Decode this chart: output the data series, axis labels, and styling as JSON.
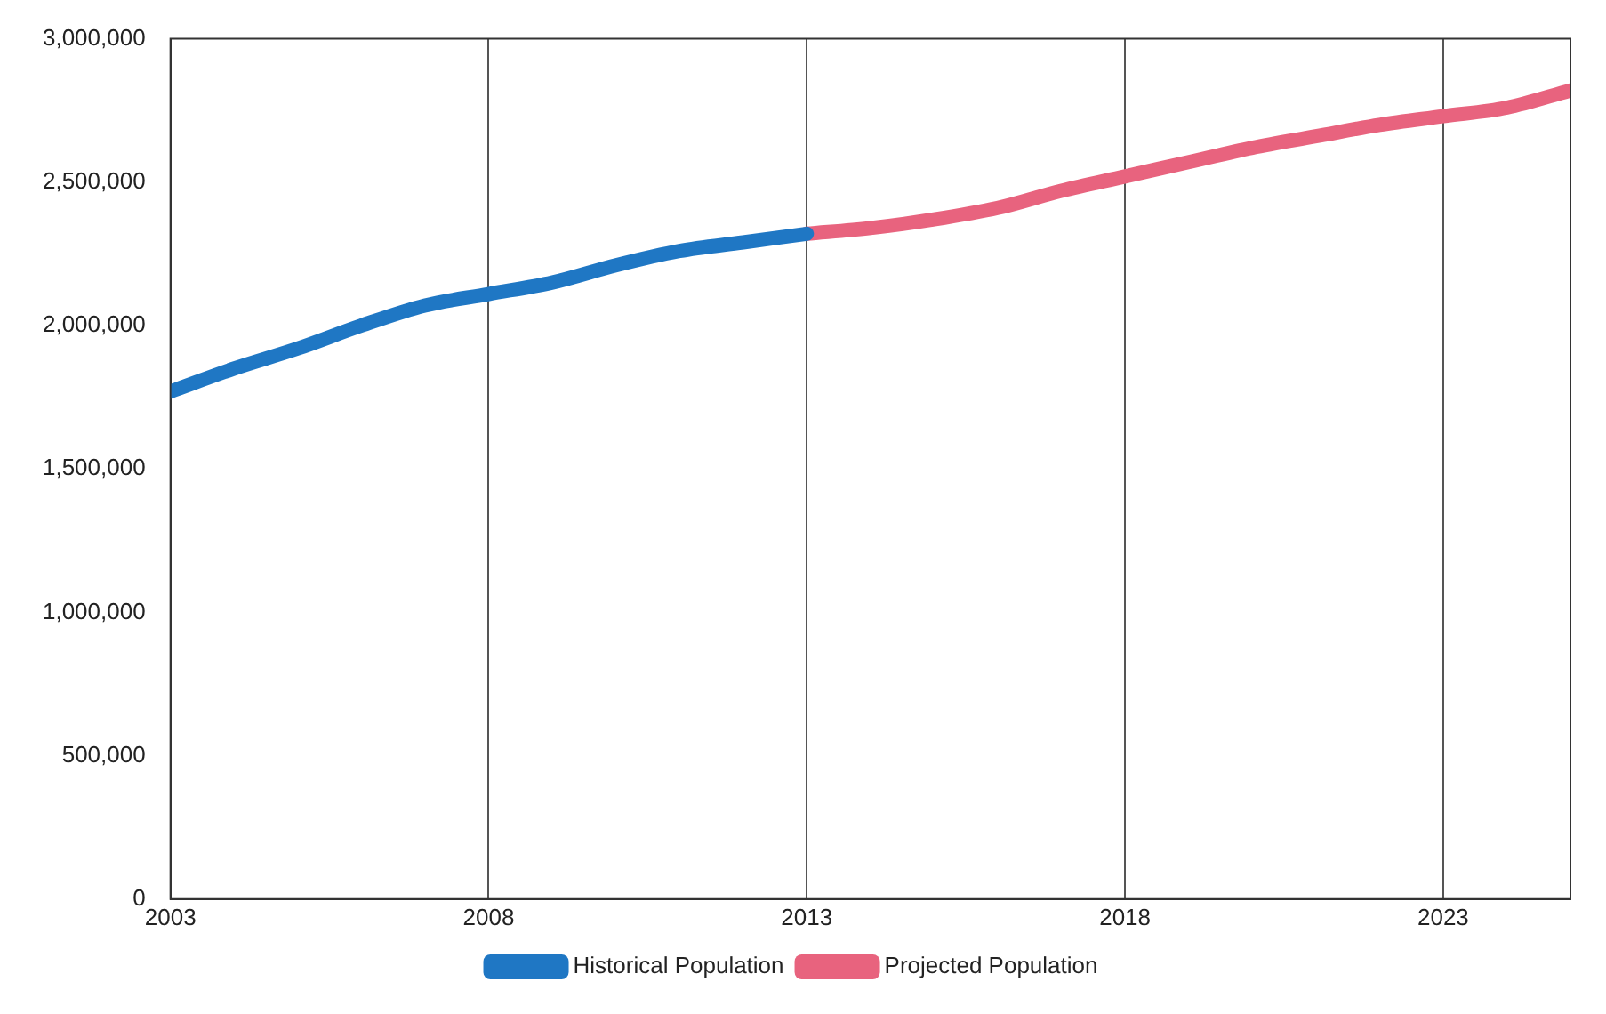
{
  "chart_data": {
    "type": "line",
    "x": [
      2003,
      2004,
      2005,
      2006,
      2007,
      2008,
      2009,
      2010,
      2011,
      2012,
      2013,
      2014,
      2015,
      2016,
      2017,
      2018,
      2019,
      2020,
      2021,
      2022,
      2023,
      2024,
      2025
    ],
    "series": [
      {
        "name": "Historical Population",
        "color": "#1f77c4",
        "values": [
          1770000,
          1850000,
          1920000,
          2000000,
          2070000,
          2110000,
          2150000,
          2210000,
          2260000,
          2290000,
          2320000,
          null,
          null,
          null,
          null,
          null,
          null,
          null,
          null,
          null,
          null,
          null,
          null
        ]
      },
      {
        "name": "Projected Population",
        "color": "#e8637e",
        "values": [
          null,
          null,
          null,
          null,
          null,
          null,
          null,
          null,
          null,
          null,
          2320000,
          2340000,
          2370000,
          2410000,
          2470000,
          2520000,
          2570000,
          2620000,
          2660000,
          2700000,
          2730000,
          2760000,
          2820000
        ]
      }
    ],
    "xlim": [
      2003,
      2025
    ],
    "xticks": [
      2003,
      2008,
      2013,
      2018,
      2023
    ],
    "ylim": [
      0,
      3000000
    ],
    "yticks": [
      {
        "value": 0,
        "label": "0"
      },
      {
        "value": 500000,
        "label": "500,000"
      },
      {
        "value": 1000000,
        "label": "1,000,000"
      },
      {
        "value": 1500000,
        "label": "1,500,000"
      },
      {
        "value": 2000000,
        "label": "2,000,000"
      },
      {
        "value": 2500000,
        "label": "2,500,000"
      },
      {
        "value": 3000000,
        "label": "3,000,000"
      }
    ],
    "grid": "x",
    "legend": "bottom",
    "marker": "none",
    "line_style": "solid"
  }
}
